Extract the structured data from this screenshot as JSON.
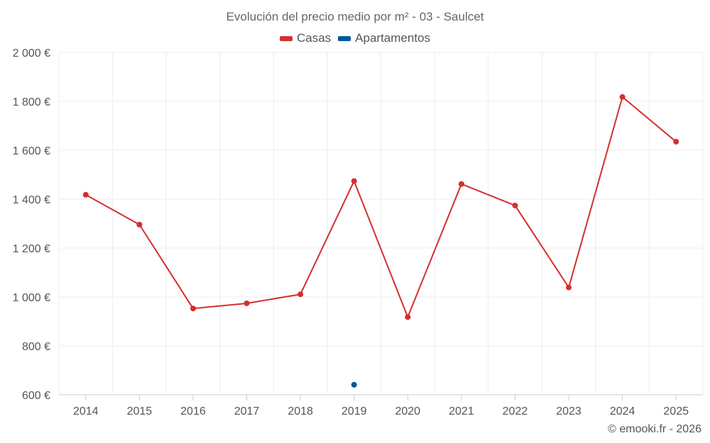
{
  "chart_data": {
    "type": "line",
    "title": "Evolución del precio medio por m² - 03 - Saulcet",
    "categories": [
      "2014",
      "2015",
      "2016",
      "2017",
      "2018",
      "2019",
      "2020",
      "2021",
      "2022",
      "2023",
      "2024",
      "2025"
    ],
    "ylim": [
      600,
      2000
    ],
    "yticks": [
      600,
      800,
      1000,
      1200,
      1400,
      1600,
      1800,
      2000
    ],
    "ytick_labels": [
      "600 €",
      "800 €",
      "1 000 €",
      "1 200 €",
      "1 400 €",
      "1 600 €",
      "1 800 €",
      "2 000 €"
    ],
    "grid": true,
    "legend_position": "top-center",
    "series": [
      {
        "name": "Casas",
        "color": "#d32f2f",
        "values": [
          1418,
          1296,
          953,
          974,
          1011,
          1474,
          918,
          1462,
          1374,
          1039,
          1818,
          1635
        ]
      },
      {
        "name": "Apartamentos",
        "color": "#01579b",
        "values": [
          null,
          null,
          null,
          null,
          null,
          641,
          null,
          null,
          null,
          null,
          null,
          null
        ]
      }
    ]
  },
  "watermark": "© emooki.fr - 2026"
}
